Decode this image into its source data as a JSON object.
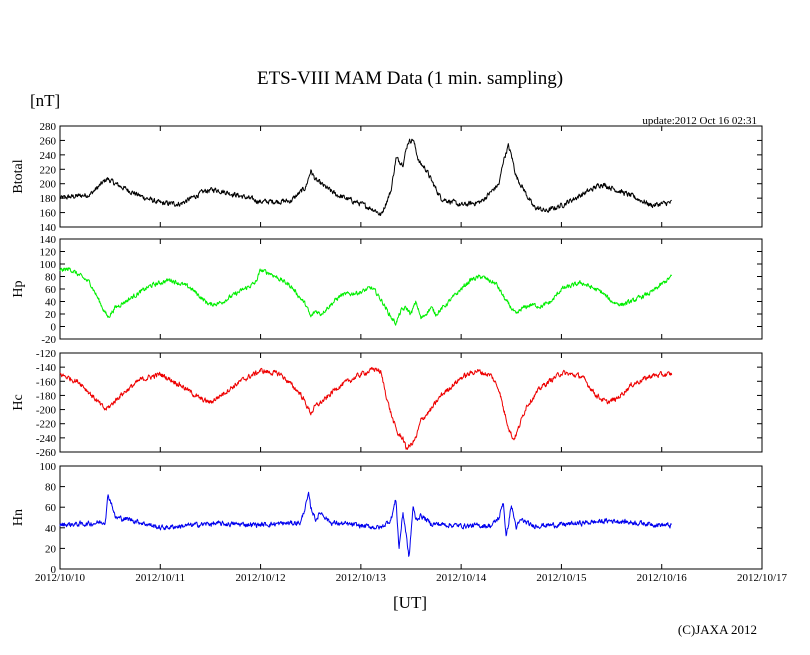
{
  "title": "ETS-VIII MAM Data (1 min. sampling)",
  "unit_label": "[nT]",
  "update_text": "update:2012 Oct 16 02:31",
  "xlabel": "[UT]",
  "copyright": "(C)JAXA 2012",
  "chart_data": {
    "type": "line",
    "x_ticks": [
      "2012/10/10",
      "2012/10/11",
      "2012/10/12",
      "2012/10/13",
      "2012/10/14",
      "2012/10/15",
      "2012/10/16",
      "2012/10/17"
    ],
    "x_range_days": [
      0,
      7
    ],
    "data_end_day": 6.1,
    "panels": [
      {
        "name": "btotal",
        "ylabel": "Btotal",
        "color": "#000000",
        "ylim": [
          140,
          280
        ],
        "y_ticks": [
          140,
          160,
          180,
          200,
          220,
          240,
          260,
          280
        ],
        "noise": 3,
        "series": [
          [
            0,
            180
          ],
          [
            0.3,
            185
          ],
          [
            0.47,
            207
          ],
          [
            0.55,
            200
          ],
          [
            0.8,
            183
          ],
          [
            1.0,
            173
          ],
          [
            1.2,
            172
          ],
          [
            1.45,
            190
          ],
          [
            1.55,
            192
          ],
          [
            1.8,
            183
          ],
          [
            2.0,
            175
          ],
          [
            2.3,
            176
          ],
          [
            2.45,
            195
          ],
          [
            2.5,
            218
          ],
          [
            2.55,
            205
          ],
          [
            2.75,
            185
          ],
          [
            3.0,
            172
          ],
          [
            3.15,
            163
          ],
          [
            3.2,
            156
          ],
          [
            3.3,
            190
          ],
          [
            3.35,
            235
          ],
          [
            3.42,
            228
          ],
          [
            3.47,
            258
          ],
          [
            3.52,
            262
          ],
          [
            3.58,
            230
          ],
          [
            3.65,
            220
          ],
          [
            3.72,
            200
          ],
          [
            3.8,
            180
          ],
          [
            4.0,
            170
          ],
          [
            4.2,
            175
          ],
          [
            4.38,
            200
          ],
          [
            4.42,
            232
          ],
          [
            4.47,
            252
          ],
          [
            4.5,
            240
          ],
          [
            4.55,
            210
          ],
          [
            4.62,
            193
          ],
          [
            4.72,
            168
          ],
          [
            4.85,
            162
          ],
          [
            5.0,
            170
          ],
          [
            5.3,
            192
          ],
          [
            5.4,
            200
          ],
          [
            5.45,
            197
          ],
          [
            5.7,
            183
          ],
          [
            5.9,
            170
          ],
          [
            6.1,
            174
          ]
        ]
      },
      {
        "name": "hp",
        "ylabel": "Hp",
        "color": "#00ee00",
        "ylim": [
          -20,
          140
        ],
        "y_ticks": [
          -20,
          0,
          20,
          40,
          60,
          80,
          100,
          120,
          140
        ],
        "noise": 3,
        "series": [
          [
            0,
            90
          ],
          [
            0.1,
            92
          ],
          [
            0.3,
            70
          ],
          [
            0.45,
            22
          ],
          [
            0.48,
            15
          ],
          [
            0.55,
            30
          ],
          [
            0.7,
            45
          ],
          [
            0.9,
            65
          ],
          [
            1.1,
            75
          ],
          [
            1.3,
            62
          ],
          [
            1.45,
            40
          ],
          [
            1.5,
            35
          ],
          [
            1.6,
            38
          ],
          [
            1.75,
            52
          ],
          [
            1.95,
            70
          ],
          [
            2.0,
            90
          ],
          [
            2.1,
            85
          ],
          [
            2.3,
            65
          ],
          [
            2.45,
            35
          ],
          [
            2.5,
            15
          ],
          [
            2.55,
            25
          ],
          [
            2.6,
            20
          ],
          [
            2.7,
            35
          ],
          [
            2.8,
            50
          ],
          [
            3.0,
            55
          ],
          [
            3.1,
            62
          ],
          [
            3.15,
            55
          ],
          [
            3.22,
            38
          ],
          [
            3.3,
            15
          ],
          [
            3.35,
            5
          ],
          [
            3.4,
            25
          ],
          [
            3.45,
            30
          ],
          [
            3.5,
            20
          ],
          [
            3.55,
            40
          ],
          [
            3.6,
            12
          ],
          [
            3.7,
            30
          ],
          [
            3.75,
            20
          ],
          [
            3.85,
            35
          ],
          [
            4.0,
            60
          ],
          [
            4.1,
            75
          ],
          [
            4.2,
            80
          ],
          [
            4.35,
            68
          ],
          [
            4.45,
            40
          ],
          [
            4.5,
            30
          ],
          [
            4.55,
            18
          ],
          [
            4.6,
            28
          ],
          [
            4.7,
            35
          ],
          [
            4.8,
            32
          ],
          [
            4.9,
            40
          ],
          [
            5.0,
            60
          ],
          [
            5.2,
            70
          ],
          [
            5.4,
            55
          ],
          [
            5.5,
            40
          ],
          [
            5.6,
            35
          ],
          [
            5.7,
            40
          ],
          [
            5.9,
            55
          ],
          [
            6.1,
            80
          ]
        ]
      },
      {
        "name": "hc",
        "ylabel": "Hc",
        "color": "#ee0000",
        "ylim": [
          -260,
          -120
        ],
        "y_ticks": [
          -120,
          -140,
          -160,
          -180,
          -200,
          -220,
          -240,
          -260
        ],
        "noise": 3,
        "series": [
          [
            0,
            -150
          ],
          [
            0.2,
            -162
          ],
          [
            0.35,
            -185
          ],
          [
            0.45,
            -200
          ],
          [
            0.5,
            -195
          ],
          [
            0.6,
            -180
          ],
          [
            0.8,
            -158
          ],
          [
            1.0,
            -150
          ],
          [
            1.2,
            -165
          ],
          [
            1.4,
            -185
          ],
          [
            1.5,
            -190
          ],
          [
            1.6,
            -180
          ],
          [
            1.8,
            -160
          ],
          [
            2.0,
            -145
          ],
          [
            2.2,
            -150
          ],
          [
            2.4,
            -178
          ],
          [
            2.5,
            -205
          ],
          [
            2.55,
            -195
          ],
          [
            2.65,
            -185
          ],
          [
            2.75,
            -170
          ],
          [
            3.0,
            -150
          ],
          [
            3.15,
            -142
          ],
          [
            3.2,
            -148
          ],
          [
            3.27,
            -190
          ],
          [
            3.32,
            -215
          ],
          [
            3.37,
            -235
          ],
          [
            3.42,
            -240
          ],
          [
            3.45,
            -255
          ],
          [
            3.5,
            -250
          ],
          [
            3.55,
            -240
          ],
          [
            3.6,
            -215
          ],
          [
            3.7,
            -200
          ],
          [
            3.8,
            -180
          ],
          [
            4.0,
            -155
          ],
          [
            4.15,
            -145
          ],
          [
            4.3,
            -152
          ],
          [
            4.38,
            -172
          ],
          [
            4.42,
            -198
          ],
          [
            4.48,
            -228
          ],
          [
            4.52,
            -242
          ],
          [
            4.55,
            -235
          ],
          [
            4.6,
            -215
          ],
          [
            4.65,
            -195
          ],
          [
            4.8,
            -168
          ],
          [
            5.0,
            -148
          ],
          [
            5.2,
            -153
          ],
          [
            5.35,
            -180
          ],
          [
            5.45,
            -190
          ],
          [
            5.55,
            -185
          ],
          [
            5.7,
            -165
          ],
          [
            5.9,
            -152
          ],
          [
            6.1,
            -150
          ]
        ]
      },
      {
        "name": "hn",
        "ylabel": "Hn",
        "color": "#0000ee",
        "ylim": [
          0,
          100
        ],
        "y_ticks": [
          0,
          20,
          40,
          60,
          80,
          100
        ],
        "noise": 2,
        "series": [
          [
            0,
            43
          ],
          [
            0.3,
            44
          ],
          [
            0.45,
            46
          ],
          [
            0.48,
            72
          ],
          [
            0.52,
            62
          ],
          [
            0.55,
            50
          ],
          [
            0.7,
            48
          ],
          [
            1.0,
            40
          ],
          [
            1.5,
            44
          ],
          [
            2.0,
            43
          ],
          [
            2.4,
            45
          ],
          [
            2.48,
            72
          ],
          [
            2.5,
            60
          ],
          [
            2.55,
            48
          ],
          [
            2.6,
            55
          ],
          [
            2.7,
            45
          ],
          [
            3.0,
            42
          ],
          [
            3.2,
            40
          ],
          [
            3.3,
            48
          ],
          [
            3.35,
            68
          ],
          [
            3.38,
            20
          ],
          [
            3.42,
            55
          ],
          [
            3.45,
            35
          ],
          [
            3.48,
            10
          ],
          [
            3.52,
            60
          ],
          [
            3.55,
            48
          ],
          [
            3.6,
            52
          ],
          [
            3.7,
            44
          ],
          [
            4.0,
            42
          ],
          [
            4.3,
            42
          ],
          [
            4.38,
            50
          ],
          [
            4.42,
            66
          ],
          [
            4.45,
            30
          ],
          [
            4.5,
            62
          ],
          [
            4.55,
            40
          ],
          [
            4.6,
            48
          ],
          [
            4.7,
            42
          ],
          [
            5.0,
            43
          ],
          [
            5.5,
            47
          ],
          [
            6.1,
            42
          ]
        ]
      }
    ]
  }
}
